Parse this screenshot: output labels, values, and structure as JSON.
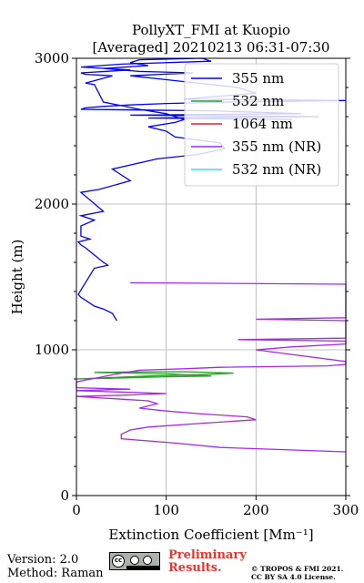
{
  "chart_data": {
    "type": "line",
    "title_line1": "PollyXT_FMI at Kuopio",
    "title_line2": "[Averaged] 20210213 06:31-07:30",
    "xlabel": "Extinction Coefficient [Mm⁻¹]",
    "ylabel": "Height (m)",
    "xlim": [
      0,
      300
    ],
    "ylim": [
      0,
      3000
    ],
    "xticks": [
      0,
      100,
      200,
      300
    ],
    "yticks": [
      0,
      1000,
      2000,
      3000
    ],
    "grid": true,
    "legend_position": "top-right",
    "series": [
      {
        "name": "355 nm",
        "color": "#0000ff",
        "x": [
          45,
          40,
          30,
          20,
          10,
          5,
          2,
          20,
          35,
          30,
          10,
          5,
          2,
          15,
          5,
          5,
          20,
          5,
          30,
          5,
          25,
          60,
          50,
          40,
          90,
          135,
          165,
          160,
          110,
          100,
          80,
          110,
          120,
          100,
          70,
          30,
          25,
          20,
          10,
          40,
          10,
          5,
          60,
          5,
          50,
          150,
          140,
          70,
          60,
          80,
          30,
          70,
          130,
          60,
          90,
          120,
          180,
          200,
          120,
          300,
          170,
          100,
          60,
          30,
          10,
          5,
          150,
          250,
          60,
          270,
          80,
          240
        ],
        "y": [
          1200,
          1250,
          1280,
          1300,
          1340,
          1360,
          1380,
          1560,
          1580,
          1600,
          1700,
          1720,
          1740,
          1760,
          1780,
          1850,
          1890,
          1920,
          1950,
          2080,
          2100,
          2160,
          2200,
          2240,
          2310,
          2340,
          2380,
          2420,
          2460,
          2500,
          2530,
          2560,
          2580,
          2620,
          2650,
          2700,
          2760,
          2820,
          2830,
          2880,
          2890,
          2900,
          2920,
          2940,
          2960,
          2980,
          3000,
          2990,
          2970,
          2950,
          2930,
          2910,
          2900,
          2880,
          2860,
          2840,
          2800,
          2760,
          2720,
          2710,
          2700,
          2690,
          2680,
          2670,
          2660,
          2650,
          2640,
          2620,
          2610,
          2600,
          2590,
          2580
        ]
      },
      {
        "name": "532 nm",
        "color": "#2ca02c",
        "x": [
          0,
          40,
          80,
          110,
          140,
          175,
          120,
          60,
          20,
          100,
          150,
          100,
          40,
          0
        ],
        "y": [
          800,
          810,
          820,
          825,
          830,
          840,
          850,
          848,
          845,
          835,
          820,
          815,
          805,
          800
        ]
      },
      {
        "name": "1064 nm",
        "color": "#d62728",
        "x": [],
        "y": []
      },
      {
        "name": "355 nm (NR)",
        "color": "#a52ae8",
        "x": [
          300,
          160,
          110,
          50,
          50,
          60,
          80,
          150,
          200,
          190,
          140,
          100,
          70,
          90,
          80,
          0,
          60,
          100,
          0,
          60,
          0,
          0,
          50,
          70,
          120,
          160,
          280,
          300,
          300,
          200,
          240,
          300,
          300,
          180,
          300,
          300,
          200,
          300,
          300,
          300,
          300,
          60
        ],
        "y": [
          300,
          330,
          360,
          390,
          420,
          450,
          470,
          500,
          520,
          540,
          560,
          580,
          600,
          630,
          650,
          680,
          690,
          700,
          720,
          730,
          740,
          780,
          840,
          860,
          870,
          880,
          890,
          900,
          920,
          1000,
          1020,
          1040,
          1060,
          1070,
          1080,
          1200,
          1210,
          1220,
          1360,
          1370,
          1450,
          1460
        ]
      },
      {
        "name": "532 nm (NR)",
        "color": "#40e0d0",
        "x": [],
        "y": []
      }
    ]
  },
  "footer": {
    "version": "Version: 2.0",
    "method": "Method: Raman",
    "preliminary_line1": "Preliminary",
    "preliminary_line2": "Results.",
    "copyright_line1": "© TROPOS & FMI 2021.",
    "copyright_line2": "CC BY SA 4.0 License."
  }
}
